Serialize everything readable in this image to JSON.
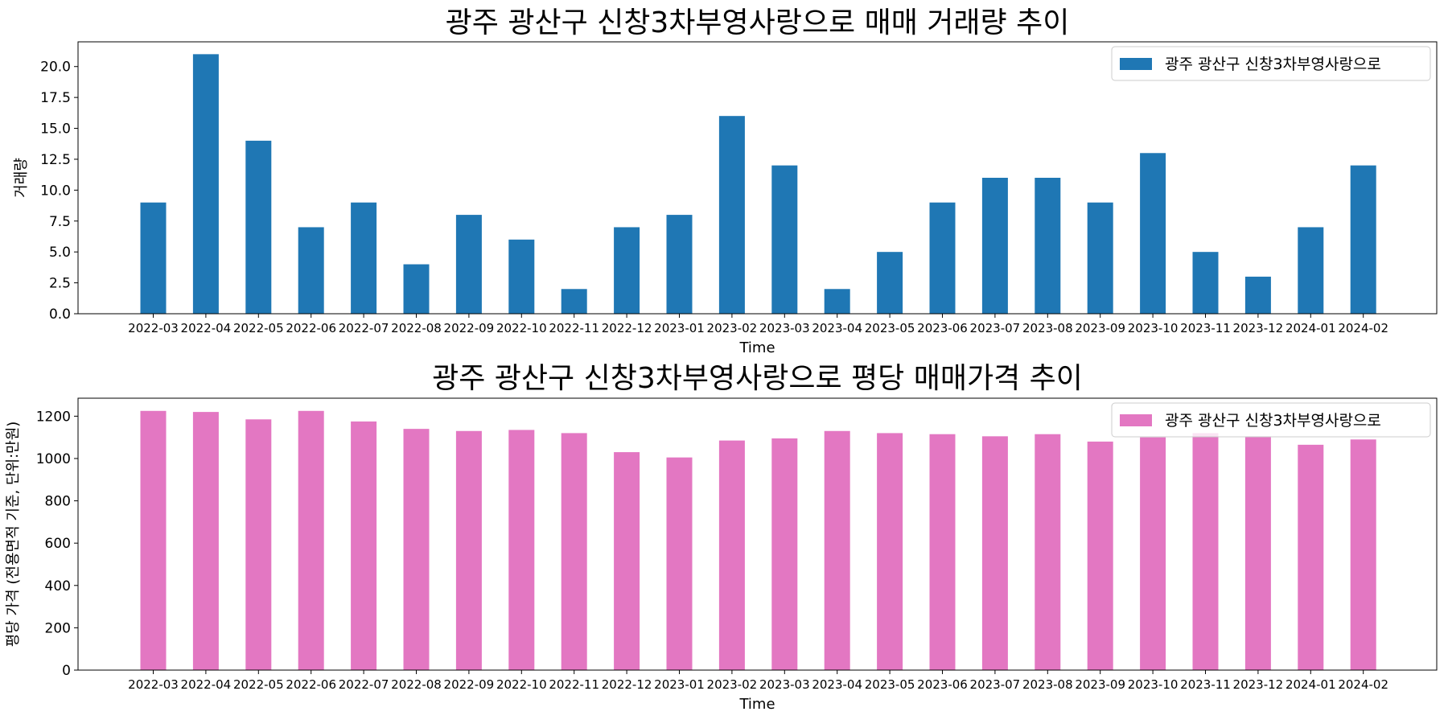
{
  "chart_data": [
    {
      "type": "bar",
      "title": "광주 광산구 신창3차부영사랑으로 매매 거래량 추이",
      "xlabel": "Time",
      "ylabel": "거래량",
      "ylim": [
        0,
        22
      ],
      "yticks": [
        "0.0",
        "2.5",
        "5.0",
        "7.5",
        "10.0",
        "12.5",
        "15.0",
        "17.5",
        "20.0"
      ],
      "legend_position": "top-right",
      "grid": false,
      "categories": [
        "2022-03",
        "2022-04",
        "2022-05",
        "2022-06",
        "2022-07",
        "2022-08",
        "2022-09",
        "2022-10",
        "2022-11",
        "2022-12",
        "2023-01",
        "2023-02",
        "2023-03",
        "2023-04",
        "2023-05",
        "2023-06",
        "2023-07",
        "2023-08",
        "2023-09",
        "2023-10",
        "2023-11",
        "2023-12",
        "2024-01",
        "2024-02"
      ],
      "series": [
        {
          "name": "광주 광산구 신창3차부영사랑으로",
          "color": "#1f77b4",
          "values": [
            9,
            21,
            14,
            7,
            9,
            4,
            8,
            6,
            2,
            7,
            8,
            16,
            12,
            2,
            5,
            9,
            11,
            11,
            9,
            13,
            5,
            3,
            7,
            12
          ]
        }
      ]
    },
    {
      "type": "bar",
      "title": "광주 광산구 신창3차부영사랑으로 평당 매매가격 추이",
      "xlabel": "Time",
      "ylabel": "평당 가격 (전용면적 기준, 단위:만원)",
      "ylim": [
        0,
        1285
      ],
      "yticks": [
        "0",
        "200",
        "400",
        "600",
        "800",
        "1000",
        "1200"
      ],
      "legend_position": "top-right",
      "grid": false,
      "categories": [
        "2022-03",
        "2022-04",
        "2022-05",
        "2022-06",
        "2022-07",
        "2022-08",
        "2022-09",
        "2022-10",
        "2022-11",
        "2022-12",
        "2023-01",
        "2023-02",
        "2023-03",
        "2023-04",
        "2023-05",
        "2023-06",
        "2023-07",
        "2023-08",
        "2023-09",
        "2023-10",
        "2023-11",
        "2023-12",
        "2024-01",
        "2024-02"
      ],
      "series": [
        {
          "name": "광주 광산구 신창3차부영사랑으로",
          "color": "#e377c2",
          "values": [
            1225,
            1220,
            1185,
            1225,
            1175,
            1140,
            1130,
            1135,
            1120,
            1030,
            1005,
            1085,
            1095,
            1130,
            1120,
            1115,
            1105,
            1115,
            1080,
            1100,
            1120,
            1105,
            1065,
            1090
          ]
        }
      ]
    }
  ]
}
